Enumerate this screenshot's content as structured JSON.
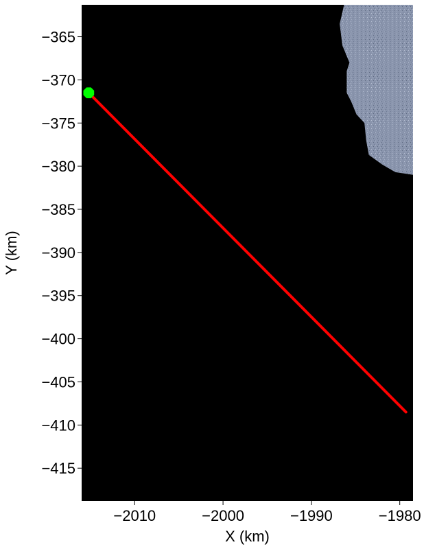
{
  "chart_data": {
    "type": "map-line",
    "xlabel": "X (km)",
    "ylabel": "Y (km)",
    "xlim": [
      -2016,
      -1978.5
    ],
    "ylim": [
      -418.8,
      -361.3
    ],
    "xticks": [
      -2010,
      -2000,
      -1990,
      -1980
    ],
    "xtick_labels": [
      "−2010",
      "−2000",
      "−1990",
      "−1980"
    ],
    "yticks": [
      -365,
      -370,
      -375,
      -380,
      -385,
      -390,
      -395,
      -400,
      -405,
      -410,
      -415
    ],
    "ytick_labels": [
      "−365",
      "−370",
      "−375",
      "−380",
      "−385",
      "−390",
      "−395",
      "−400",
      "−405",
      "−410",
      "−415"
    ],
    "background": {
      "color": "#000000"
    },
    "ice_region": {
      "color": "#8a95ad",
      "outline": [
        [
          -1986.3,
          -361.3
        ],
        [
          -1978.5,
          -361.3
        ],
        [
          -1978.5,
          -381.0
        ],
        [
          -1980.5,
          -380.7
        ],
        [
          -1982.0,
          -379.8
        ],
        [
          -1983.5,
          -378.7
        ],
        [
          -1983.8,
          -377.0
        ],
        [
          -1984.0,
          -375.0
        ],
        [
          -1984.9,
          -374.0
        ],
        [
          -1985.5,
          -372.5
        ],
        [
          -1986.0,
          -371.5
        ],
        [
          -1986.0,
          -369.0
        ],
        [
          -1985.7,
          -368.0
        ],
        [
          -1986.5,
          -366.0
        ],
        [
          -1986.8,
          -363.5
        ]
      ]
    },
    "series": [
      {
        "type": "line",
        "color": "#ff0000",
        "points": [
          [
            -2015.2,
            -371.5
          ],
          [
            -1979.3,
            -408.5
          ]
        ]
      }
    ],
    "markers": [
      {
        "x": -2015.2,
        "y": -371.5,
        "color": "#00ff00",
        "shape": "octagon"
      }
    ]
  }
}
